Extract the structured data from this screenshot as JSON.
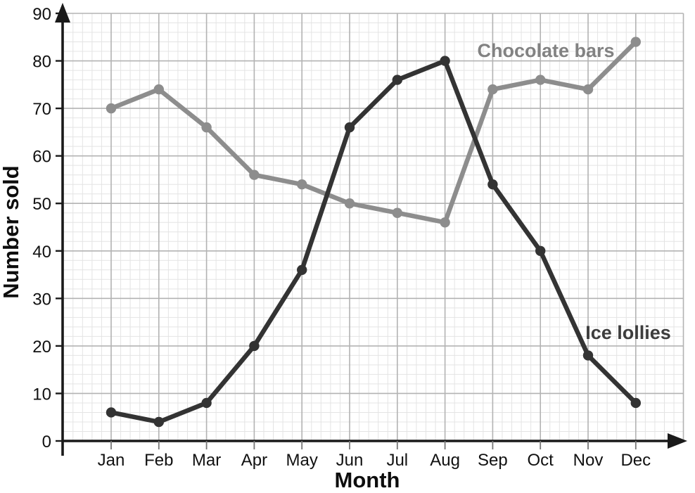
{
  "chart_data": {
    "type": "line",
    "title": "",
    "xlabel": "Month",
    "ylabel": "Number sold",
    "categories": [
      "Jan",
      "Feb",
      "Mar",
      "Apr",
      "May",
      "Jun",
      "Jul",
      "Aug",
      "Sep",
      "Oct",
      "Nov",
      "Dec"
    ],
    "series": [
      {
        "name": "Chocolate bars",
        "color": "#8d8d8d",
        "label_color": "#828282",
        "values": [
          70,
          74,
          66,
          56,
          54,
          50,
          48,
          46,
          74,
          76,
          74,
          84
        ]
      },
      {
        "name": "Ice lollies",
        "color": "#333333",
        "label_color": "#3d3d3d",
        "values": [
          6,
          4,
          8,
          20,
          36,
          66,
          76,
          80,
          54,
          40,
          18,
          8
        ]
      }
    ],
    "ylim": [
      0,
      90
    ],
    "yticks": [
      0,
      10,
      20,
      30,
      40,
      50,
      60,
      70,
      80,
      90
    ],
    "minor_step_y": 2,
    "minor_divisions_x": 5,
    "legend_position": "inline-annotations",
    "grid": "on",
    "colors": {
      "axis": "#1a1a1a",
      "major_grid": "#b3b3b3",
      "minor_grid": "#e4e4e4",
      "tick_text": "#111111"
    }
  }
}
